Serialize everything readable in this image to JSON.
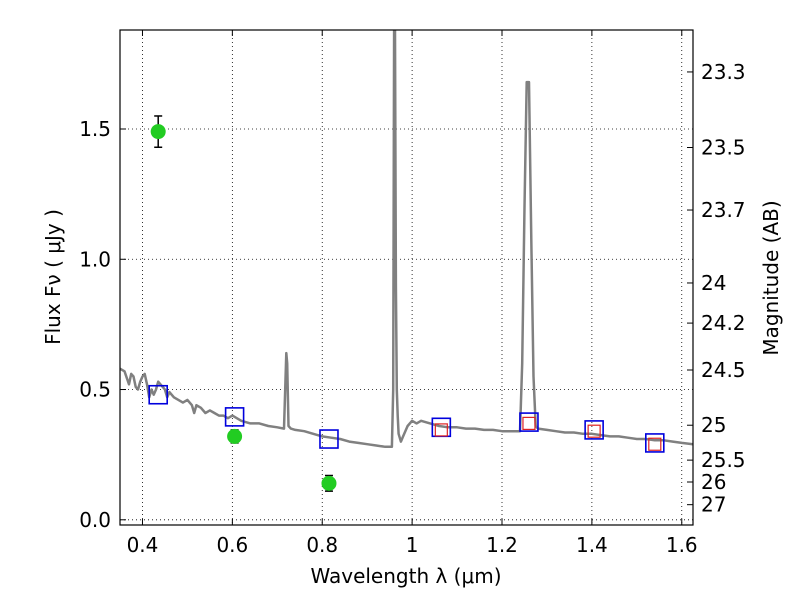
{
  "chart_data": {
    "type": "scatter",
    "title": "",
    "xlabel": "Wavelength  λ (μm)",
    "ylabel": "Flux  Fν  ( μJy )",
    "y2label": "Magnitude (AB)",
    "xlim": [
      0.35,
      1.625
    ],
    "ylim": [
      -0.02,
      1.88
    ],
    "grid": true,
    "x_ticks": [
      0.4,
      0.6,
      0.8,
      1.0,
      1.2,
      1.4,
      1.6
    ],
    "x_tick_labels": [
      "0.4",
      "0.6",
      "0.8",
      "1",
      "1.2",
      "1.4",
      "1.6"
    ],
    "y_ticks": [
      0.0,
      0.5,
      1.0,
      1.5
    ],
    "y_tick_labels": [
      "0.0",
      "0.5",
      "1.0",
      "1.5"
    ],
    "y2_ticks": [
      {
        "label": "23.3",
        "flux": 1.719
      },
      {
        "label": "23.5",
        "flux": 1.429
      },
      {
        "label": "23.7",
        "flux": 1.189
      },
      {
        "label": "24",
        "flux": 0.909
      },
      {
        "label": "24.2",
        "flux": 0.755
      },
      {
        "label": "24.5",
        "flux": 0.575
      },
      {
        "label": "25",
        "flux": 0.363
      },
      {
        "label": "25.5",
        "flux": 0.229
      },
      {
        "label": "26",
        "flux": 0.145
      },
      {
        "label": "27",
        "flux": 0.058
      }
    ],
    "series": [
      {
        "kind": "line",
        "color": "#808080",
        "x": [
          0.35,
          0.36,
          0.37,
          0.375,
          0.38,
          0.385,
          0.39,
          0.395,
          0.4,
          0.405,
          0.41,
          0.415,
          0.42,
          0.425,
          0.43,
          0.435,
          0.44,
          0.445,
          0.45,
          0.455,
          0.46,
          0.47,
          0.48,
          0.49,
          0.5,
          0.51,
          0.515,
          0.52,
          0.53,
          0.54,
          0.55,
          0.56,
          0.57,
          0.58,
          0.59,
          0.6,
          0.62,
          0.64,
          0.66,
          0.68,
          0.7,
          0.715,
          0.72,
          0.722,
          0.725,
          0.73,
          0.74,
          0.76,
          0.78,
          0.8,
          0.82,
          0.84,
          0.86,
          0.88,
          0.9,
          0.92,
          0.94,
          0.955,
          0.958,
          0.96,
          0.962,
          0.964,
          0.966,
          0.968,
          0.97,
          0.975,
          0.98,
          0.99,
          1.0,
          1.01,
          1.02,
          1.04,
          1.06,
          1.08,
          1.1,
          1.12,
          1.14,
          1.16,
          1.18,
          1.2,
          1.22,
          1.24,
          1.245,
          1.25,
          1.255,
          1.26,
          1.265,
          1.27,
          1.275,
          1.28,
          1.3,
          1.32,
          1.34,
          1.36,
          1.38,
          1.4,
          1.42,
          1.44,
          1.46,
          1.48,
          1.5,
          1.52,
          1.54,
          1.56,
          1.58,
          1.6,
          1.625
        ],
        "y": [
          0.58,
          0.57,
          0.52,
          0.56,
          0.55,
          0.51,
          0.5,
          0.53,
          0.55,
          0.56,
          0.52,
          0.47,
          0.5,
          0.48,
          0.5,
          0.53,
          0.52,
          0.51,
          0.5,
          0.47,
          0.49,
          0.47,
          0.46,
          0.45,
          0.46,
          0.44,
          0.41,
          0.44,
          0.43,
          0.41,
          0.42,
          0.41,
          0.4,
          0.4,
          0.39,
          0.4,
          0.38,
          0.37,
          0.37,
          0.36,
          0.355,
          0.35,
          0.64,
          0.6,
          0.36,
          0.35,
          0.345,
          0.34,
          0.33,
          0.32,
          0.315,
          0.31,
          0.3,
          0.295,
          0.29,
          0.285,
          0.28,
          0.28,
          0.5,
          1.88,
          1.88,
          0.9,
          0.5,
          0.4,
          0.33,
          0.3,
          0.32,
          0.36,
          0.38,
          0.37,
          0.38,
          0.37,
          0.36,
          0.355,
          0.355,
          0.35,
          0.35,
          0.345,
          0.345,
          0.34,
          0.34,
          0.34,
          0.6,
          1.2,
          1.68,
          1.68,
          1.1,
          0.55,
          0.36,
          0.35,
          0.345,
          0.34,
          0.335,
          0.335,
          0.33,
          0.33,
          0.325,
          0.32,
          0.32,
          0.315,
          0.31,
          0.31,
          0.305,
          0.305,
          0.3,
          0.295,
          0.29
        ]
      },
      {
        "kind": "points",
        "marker": "circle",
        "color": "#22cc22",
        "x": [
          0.435,
          0.605,
          0.815
        ],
        "y": [
          1.49,
          0.32,
          0.14
        ],
        "yerr": [
          0.06,
          0.025,
          0.03
        ]
      },
      {
        "kind": "points",
        "marker": "square",
        "color": "#0000dd",
        "x": [
          0.435,
          0.605,
          0.815,
          1.065,
          1.26,
          1.405,
          1.54
        ],
        "y": [
          0.48,
          0.395,
          0.31,
          0.355,
          0.375,
          0.345,
          0.295
        ]
      },
      {
        "kind": "points",
        "marker": "square-small",
        "color": "#dd2222",
        "x": [
          1.065,
          1.26,
          1.405,
          1.54
        ],
        "y": [
          0.345,
          0.37,
          0.34,
          0.29
        ]
      }
    ]
  }
}
